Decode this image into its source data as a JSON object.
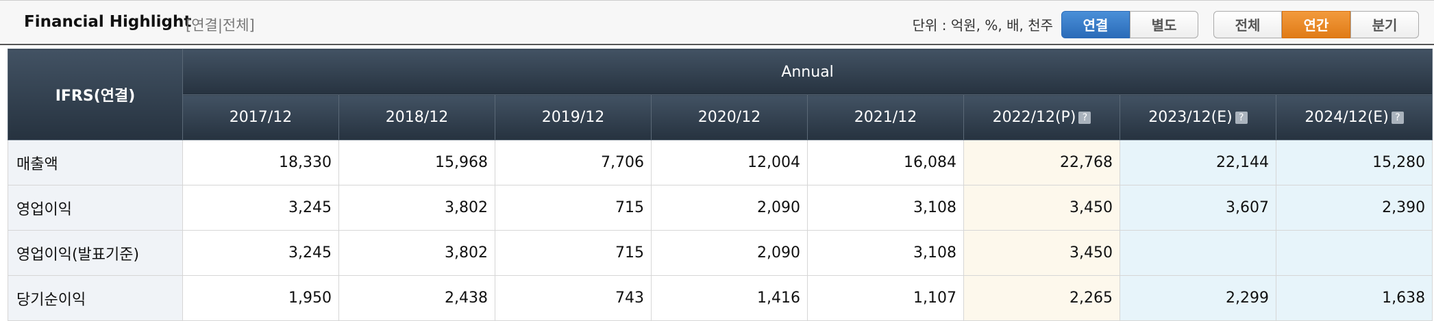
{
  "header": {
    "title": "Financial Highlight",
    "tag": "[연결|전체]",
    "unit": "단위 : 억원, %, 배, 천주",
    "scope_buttons": [
      "연결",
      "별도"
    ],
    "period_buttons": [
      "전체",
      "연간",
      "분기"
    ]
  },
  "table": {
    "corner": "IFRS(연결)",
    "group": "Annual",
    "columns": [
      "2017/12",
      "2018/12",
      "2019/12",
      "2020/12",
      "2021/12",
      "2022/12(P)",
      "2023/12(E)",
      "2024/12(E)"
    ],
    "rows": [
      {
        "label": "매출액",
        "cells": [
          "18,330",
          "15,968",
          "7,706",
          "12,004",
          "16,084",
          "22,768",
          "22,144",
          "15,280"
        ]
      },
      {
        "label": "영업이익",
        "cells": [
          "3,245",
          "3,802",
          "715",
          "2,090",
          "3,108",
          "3,450",
          "3,607",
          "2,390"
        ]
      },
      {
        "label": "영업이익(발표기준)",
        "cells": [
          "3,245",
          "3,802",
          "715",
          "2,090",
          "3,108",
          "3,450",
          null,
          null
        ]
      },
      {
        "label": "당기순이익",
        "cells": [
          "1,950",
          "2,438",
          "743",
          "1,416",
          "1,107",
          "2,265",
          "2,299",
          "1,638"
        ]
      }
    ]
  }
}
